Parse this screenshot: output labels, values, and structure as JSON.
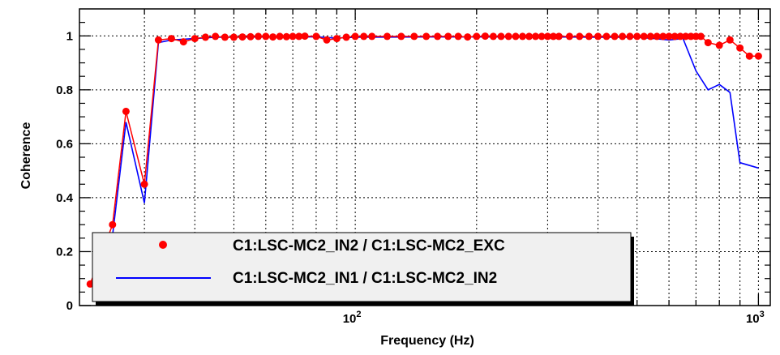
{
  "chart_data": {
    "type": "line",
    "title": "",
    "xlabel": "Frequency (Hz)",
    "ylabel": "Coherence",
    "xscale": "log",
    "xlim": [
      20.7,
      1070
    ],
    "ylim": [
      0,
      1.1
    ],
    "yticks": [
      {
        "value": 0,
        "label": "0"
      },
      {
        "value": 0.2,
        "label": "0.2"
      },
      {
        "value": 0.4,
        "label": "0.4"
      },
      {
        "value": 0.6,
        "label": "0.6"
      },
      {
        "value": 0.8,
        "label": "0.8"
      },
      {
        "value": 1,
        "label": "1"
      }
    ],
    "xticks": [
      {
        "value": 100,
        "base": "10",
        "exp": "2"
      },
      {
        "value": 1000,
        "base": "10",
        "exp": "3"
      }
    ],
    "grid": true,
    "legend_position": "bottom-left",
    "series": [
      {
        "name": "C1:LSC-MC2_IN2 / C1:LSC-MC2_EXC",
        "style": "markers-line",
        "color": "#ff0000",
        "x": [
          22,
          25,
          27,
          30,
          32.5,
          35,
          37.5,
          40,
          42.5,
          45,
          47.5,
          50,
          52.5,
          55,
          57.5,
          60,
          62.5,
          65,
          67.5,
          70,
          72.5,
          75,
          80,
          85,
          90,
          95,
          100,
          105,
          110,
          120,
          130,
          140,
          150,
          160,
          170,
          180,
          190,
          200,
          210,
          220,
          230,
          240,
          250,
          260,
          270,
          280,
          290,
          300,
          310,
          320,
          340,
          360,
          380,
          400,
          420,
          440,
          460,
          480,
          500,
          520,
          540,
          560,
          580,
          600,
          620,
          640,
          660,
          680,
          700,
          720,
          750,
          800,
          850,
          900,
          950,
          1000
        ],
        "values": [
          0.08,
          0.3,
          0.72,
          0.45,
          0.985,
          0.99,
          0.978,
          0.99,
          0.995,
          0.998,
          0.995,
          0.995,
          0.996,
          0.997,
          0.998,
          0.998,
          0.996,
          0.998,
          0.997,
          0.998,
          0.998,
          0.999,
          0.998,
          0.985,
          0.99,
          0.995,
          0.998,
          0.998,
          0.998,
          0.998,
          0.998,
          0.998,
          0.998,
          0.998,
          0.998,
          0.998,
          0.996,
          0.998,
          0.999,
          0.998,
          0.998,
          0.998,
          0.998,
          0.998,
          0.998,
          0.998,
          0.998,
          0.998,
          0.998,
          0.998,
          0.998,
          0.998,
          0.998,
          0.998,
          0.998,
          0.998,
          0.998,
          0.998,
          0.998,
          0.998,
          0.998,
          0.998,
          0.998,
          0.998,
          0.998,
          0.998,
          0.998,
          0.998,
          0.998,
          0.998,
          0.975,
          0.965,
          0.985,
          0.955,
          0.925,
          0.925
        ]
      },
      {
        "name": "C1:LSC-MC2_IN1 / C1:LSC-MC2_IN2",
        "style": "line",
        "color": "#0000ff",
        "x": [
          25,
          27,
          30,
          32.5,
          35,
          40,
          45,
          50,
          60,
          70,
          80,
          90,
          100,
          150,
          200,
          300,
          400,
          500,
          550,
          600,
          650,
          700,
          750,
          800,
          850,
          900,
          1000
        ],
        "values": [
          0.26,
          0.68,
          0.38,
          0.975,
          0.985,
          0.99,
          0.995,
          0.995,
          0.996,
          0.997,
          0.996,
          0.992,
          0.995,
          0.996,
          0.996,
          0.996,
          0.995,
          0.995,
          0.99,
          0.985,
          0.99,
          0.87,
          0.8,
          0.82,
          0.79,
          0.53,
          0.51
        ]
      }
    ]
  }
}
